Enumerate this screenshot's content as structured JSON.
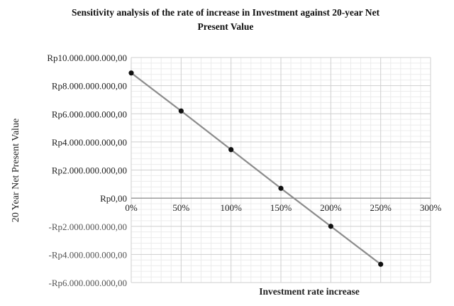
{
  "chart_data": {
    "type": "scatter",
    "title_line1": "Sensitivity analysis of the rate of increase in Investment against 20-year Net",
    "title_line2": "Present Value",
    "xlabel": "Investment rate increase",
    "ylabel": "20 Year Net Present Value",
    "x_ticks": [
      "0%",
      "50%",
      "100%",
      "150%",
      "200%",
      "250%",
      "300%"
    ],
    "y_ticks": [
      "Rp10.000.000.000,00",
      "Rp8.000.000.000,00",
      "Rp6.000.000.000,00",
      "Rp4.000.000.000,00",
      "Rp2.000.000.000,00",
      "Rp0,00",
      "-Rp2.000.000.000,00",
      "-Rp4.000.000.000,00",
      "-Rp6.000.000.000,00"
    ],
    "xlim": [
      0,
      3
    ],
    "ylim": [
      -6000000000,
      10000000000
    ],
    "grid": true,
    "lines_connect_points": true,
    "series": [
      {
        "x": [
          0,
          0.5,
          1.0,
          1.5,
          2.0,
          2.5
        ],
        "y": [
          8900000000,
          6200000000,
          3450000000,
          700000000,
          -2000000000,
          -4700000000
        ]
      }
    ],
    "colors": {
      "line": "#8c8c8c",
      "marker": "#111111"
    }
  }
}
